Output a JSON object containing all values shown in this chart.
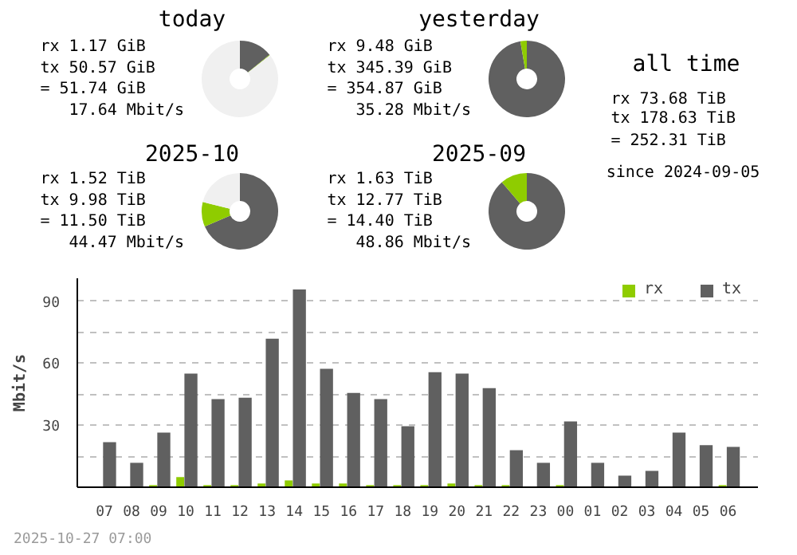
{
  "chart_data": [
    {
      "type": "donut",
      "title": "today",
      "categories": [
        null,
        null,
        null
      ],
      "values": [
        14.1,
        0.3,
        85.6
      ],
      "colors": [
        "#606060",
        "#8fcc00",
        "#f0f0f0"
      ],
      "annotations": [
        "rx     1.17 GiB",
        "tx    50.57 GiB",
        " =    51.74 GiB",
        "17.64 Mbit/s"
      ]
    },
    {
      "type": "donut",
      "title": "yesterday",
      "categories": [
        null,
        null
      ],
      "values": [
        97.3,
        2.7
      ],
      "colors": [
        "#606060",
        "#8fcc00"
      ],
      "annotations": [
        "rx     9.48 GiB",
        "tx   345.39 GiB",
        " =   354.87 GiB",
        "35.28 Mbit/s"
      ]
    },
    {
      "type": "donut",
      "title": "2025-10",
      "categories": [
        null,
        null,
        null
      ],
      "values": [
        68.5,
        10.4,
        21.1
      ],
      "colors": [
        "#606060",
        "#8fcc00",
        "#f0f0f0"
      ],
      "annotations": [
        "rx     1.52 TiB",
        "tx     9.98 TiB",
        " =    11.50 TiB",
        "44.47 Mbit/s"
      ]
    },
    {
      "type": "donut",
      "title": "2025-09",
      "categories": [
        null,
        null
      ],
      "values": [
        88.7,
        11.3
      ],
      "colors": [
        "#606060",
        "#8fcc00"
      ],
      "annotations": [
        "rx     1.63 TiB",
        "tx    12.77 TiB",
        " =    14.40 TiB",
        "48.86 Mbit/s"
      ]
    },
    {
      "type": "other",
      "title": "all time",
      "annotations": [
        "rx    73.68 TiB",
        "tx   178.63 TiB",
        " =   252.31 TiB",
        "since 2024-09-05"
      ]
    },
    {
      "type": "bar",
      "ylabel": "Mbit/s",
      "categories": [
        "07",
        "08",
        "09",
        "10",
        "11",
        "12",
        "13",
        "14",
        "15",
        "16",
        "17",
        "18",
        "19",
        "20",
        "21",
        "22",
        "23",
        "00",
        "01",
        "02",
        "03",
        "04",
        "05",
        "06"
      ],
      "series": [
        {
          "name": "rx",
          "color": "#8fcc00",
          "values": [
            0,
            0,
            1.0,
            4.9,
            1.0,
            1.0,
            1.8,
            3.3,
            1.8,
            1.8,
            1.0,
            1.0,
            1.0,
            1.8,
            1.0,
            1.0,
            0,
            1.0,
            0,
            0,
            0,
            0,
            0,
            1.0
          ]
        },
        {
          "name": "tx",
          "color": "#606060",
          "values": [
            21.8,
            11.8,
            26.4,
            54.9,
            42.6,
            43.3,
            71.8,
            95.6,
            57.2,
            45.6,
            42.6,
            29.5,
            55.6,
            54.9,
            47.9,
            17.9,
            11.8,
            31.8,
            11.8,
            5.6,
            7.9,
            26.4,
            20.3,
            19.5
          ]
        }
      ],
      "ylim": [
        0,
        101
      ],
      "yticks": [
        {
          "value": 15,
          "label": null
        },
        30,
        {
          "value": 45,
          "label": null
        },
        60,
        {
          "value": 75,
          "label": null
        },
        90
      ],
      "grid": "y",
      "legend": "top right",
      "annotations": [
        "2025-10-27 07:00"
      ]
    }
  ]
}
